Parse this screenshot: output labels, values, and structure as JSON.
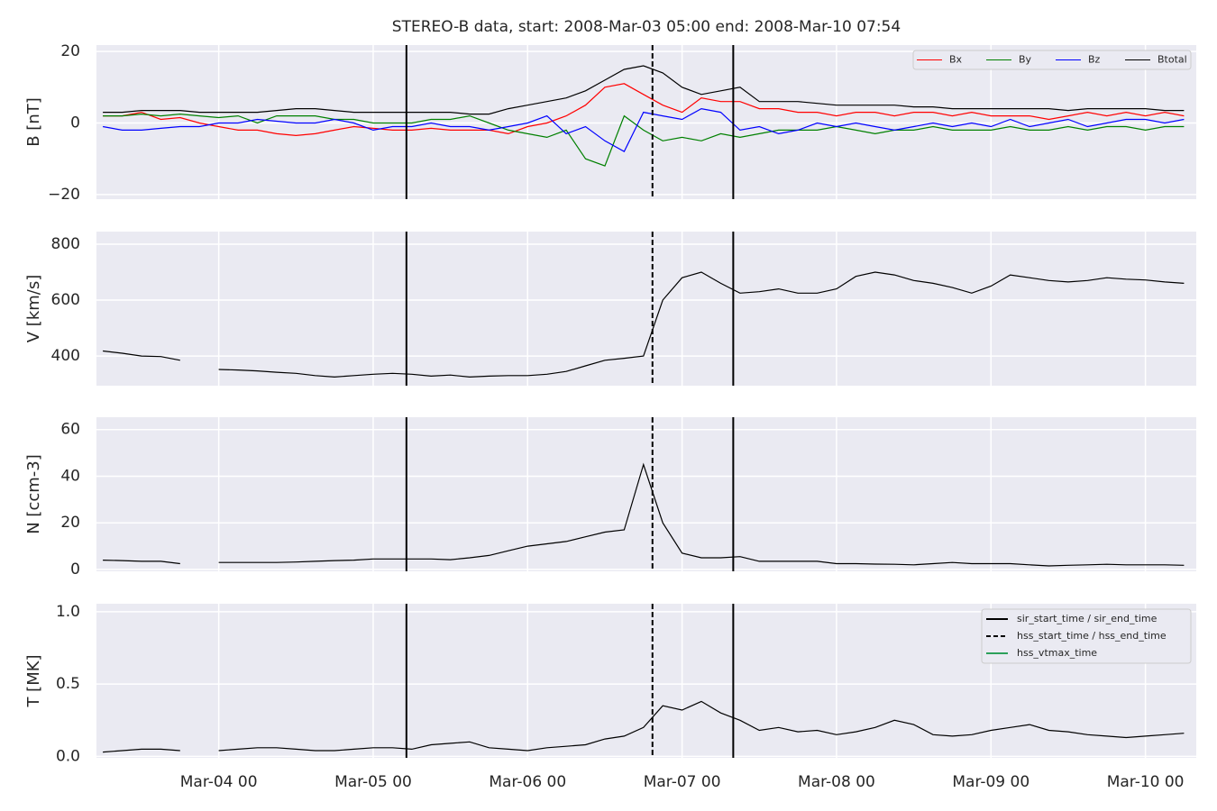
{
  "chart_data": [
    {
      "type": "line",
      "title": "STEREO-B data, start: 2008-Mar-03 05:00  end: 2008-Mar-10 07:54",
      "ylabel": "B [nT]",
      "ylim": [
        -21.3,
        21.8
      ],
      "yticks": [
        {
          "value": -20,
          "label": "−20"
        },
        0,
        20
      ],
      "grid": true,
      "legend": "upper right",
      "series": [
        {
          "name": "Bx",
          "color": "#ff0000",
          "values": [
            2,
            2,
            3,
            1,
            1.5,
            0,
            -1,
            -2,
            -2,
            -3,
            -3.5,
            -3,
            -2,
            -1,
            -1.5,
            -2,
            -2,
            -1.5,
            -2,
            -2,
            -2,
            -3,
            -1,
            0,
            2,
            5,
            10,
            11,
            8,
            5,
            3,
            7,
            6,
            6,
            4,
            4,
            3,
            3,
            2,
            3,
            3,
            2,
            3,
            3,
            2,
            3,
            2,
            2,
            2,
            1,
            2,
            3,
            2,
            3,
            2,
            3,
            2
          ]
        },
        {
          "name": "By",
          "color": "#008000",
          "values": [
            2,
            2,
            2.5,
            2,
            2.5,
            2,
            1.5,
            2,
            0,
            2,
            2,
            2,
            1,
            1,
            0,
            0,
            0,
            1,
            1,
            2,
            0,
            -2,
            -3,
            -4,
            -2,
            -10,
            -12,
            2,
            -2,
            -5,
            -4,
            -5,
            -3,
            -4,
            -3,
            -2,
            -2,
            -2,
            -1,
            -2,
            -3,
            -2,
            -2,
            -1,
            -2,
            -2,
            -2,
            -1,
            -2,
            -2,
            -1,
            -2,
            -1,
            -1,
            -2,
            -1,
            -1
          ]
        },
        {
          "name": "Bz",
          "color": "#0000ff",
          "values": [
            -1,
            -2,
            -2,
            -1.5,
            -1,
            -1,
            0,
            0,
            1,
            0.5,
            0,
            0,
            1,
            0,
            -2,
            -1,
            -1,
            0,
            -1,
            -1,
            -2,
            -1,
            0,
            2,
            -3,
            -1,
            -5,
            -8,
            3,
            2,
            1,
            4,
            3,
            -2,
            -1,
            -3,
            -2,
            0,
            -1,
            0,
            -1,
            -2,
            -1,
            0,
            -1,
            0,
            -1,
            1,
            -1,
            0,
            1,
            -1,
            0,
            1,
            1,
            0,
            1
          ]
        },
        {
          "name": "Btotal",
          "color": "#000000",
          "values": [
            3,
            3,
            3.5,
            3.5,
            3.5,
            3,
            3,
            3,
            3,
            3.5,
            4,
            4,
            3.5,
            3,
            3,
            3,
            3,
            3,
            3,
            2.5,
            2.5,
            4,
            5,
            6,
            7,
            9,
            12,
            15,
            16,
            14,
            10,
            8,
            9,
            10,
            6,
            6,
            6,
            5.5,
            5,
            5,
            5,
            5,
            4.5,
            4.5,
            4,
            4,
            4,
            4,
            4,
            4,
            3.5,
            4,
            4,
            4,
            4,
            3.5,
            3.5
          ]
        }
      ]
    },
    {
      "type": "line",
      "ylabel": "V [km/s]",
      "ylim": [
        294,
        845
      ],
      "yticks": [
        400,
        600,
        800
      ],
      "grid": true,
      "series": [
        {
          "name": "V",
          "color": "#000000",
          "values": [
            418,
            410,
            400,
            398,
            385,
            null,
            352,
            350,
            347,
            342,
            338,
            330,
            325,
            330,
            335,
            338,
            335,
            328,
            332,
            325,
            328,
            330,
            330,
            335,
            345,
            365,
            385,
            392,
            400,
            600,
            680,
            700,
            660,
            625,
            630,
            640,
            625,
            625,
            640,
            685,
            700,
            690,
            670,
            660,
            645,
            625,
            650,
            690,
            680,
            670,
            665,
            670,
            680,
            675,
            672,
            665,
            660
          ]
        }
      ]
    },
    {
      "type": "line",
      "ylabel": "N [ccm-3]",
      "ylim": [
        -0.8,
        65.3
      ],
      "yticks": [
        0,
        20,
        40,
        60
      ],
      "grid": true,
      "series": [
        {
          "name": "N",
          "color": "#000000",
          "values": [
            4,
            3.8,
            3.5,
            3.5,
            2.5,
            null,
            3,
            3,
            3,
            3,
            3.2,
            3.5,
            3.8,
            4,
            4.5,
            4.5,
            4.5,
            4.5,
            4.2,
            5,
            6,
            8,
            10,
            11,
            12,
            14,
            16,
            17,
            45,
            20,
            7,
            5,
            5,
            5.5,
            3.5,
            3.5,
            3.5,
            3.5,
            2.5,
            2.5,
            2.3,
            2.2,
            2,
            2.5,
            3,
            2.5,
            2.5,
            2.5,
            2,
            1.5,
            1.8,
            2,
            2.2,
            2,
            2,
            2,
            1.8
          ]
        }
      ]
    },
    {
      "type": "line",
      "ylabel": "T [MK]",
      "ylim": [
        -0.01,
        1.055
      ],
      "yticks": [
        {
          "value": 0,
          "label": "0.0"
        },
        {
          "value": 0.5,
          "label": "0.5"
        },
        {
          "value": 1,
          "label": "1.0"
        }
      ],
      "grid": true,
      "legend": "upper right",
      "series": [
        {
          "name": "T",
          "color": "#000000",
          "values": [
            0.03,
            0.04,
            0.05,
            0.05,
            0.04,
            null,
            0.04,
            0.05,
            0.06,
            0.06,
            0.05,
            0.04,
            0.04,
            0.05,
            0.06,
            0.06,
            0.05,
            0.08,
            0.09,
            0.1,
            0.06,
            0.05,
            0.04,
            0.06,
            0.07,
            0.08,
            0.12,
            0.14,
            0.2,
            0.35,
            0.32,
            0.38,
            0.3,
            0.25,
            0.18,
            0.2,
            0.17,
            0.18,
            0.15,
            0.17,
            0.2,
            0.25,
            0.22,
            0.15,
            0.14,
            0.15,
            0.18,
            0.2,
            0.22,
            0.18,
            0.17,
            0.15,
            0.14,
            0.13,
            0.14,
            0.15,
            0.16
          ]
        }
      ],
      "x": [
        "Mar-03 06",
        "Mar-03 09",
        "Mar-03 12",
        "Mar-03 15",
        "Mar-03 18",
        "Mar-03 21",
        "Mar-04 00",
        "Mar-04 03",
        "Mar-04 06",
        "Mar-04 09",
        "Mar-04 12",
        "Mar-04 15",
        "Mar-04 18",
        "Mar-04 21",
        "Mar-05 00",
        "Mar-05 03",
        "Mar-05 06",
        "Mar-05 09",
        "Mar-05 12",
        "Mar-05 15",
        "Mar-05 18",
        "Mar-05 21",
        "Mar-06 00",
        "Mar-06 03",
        "Mar-06 06",
        "Mar-06 09",
        "Mar-06 12",
        "Mar-06 15",
        "Mar-06 18",
        "Mar-06 21",
        "Mar-07 00",
        "Mar-07 03",
        "Mar-07 06",
        "Mar-07 09",
        "Mar-07 12",
        "Mar-07 15",
        "Mar-07 18",
        "Mar-07 21",
        "Mar-08 00",
        "Mar-08 03",
        "Mar-08 06",
        "Mar-08 09",
        "Mar-08 12",
        "Mar-08 15",
        "Mar-08 18",
        "Mar-08 21",
        "Mar-09 00",
        "Mar-09 03",
        "Mar-09 06",
        "Mar-09 09",
        "Mar-09 12",
        "Mar-09 15",
        "Mar-09 18",
        "Mar-09 21",
        "Mar-10 00",
        "Mar-10 03",
        "Mar-10 06"
      ],
      "xlim": [
        "Mar-03 05:00",
        "Mar-10 07:54"
      ],
      "xticks": [
        "Mar-04 00",
        "Mar-05 00",
        "Mar-06 00",
        "Mar-07 00",
        "Mar-08 00",
        "Mar-09 00",
        "Mar-10 00"
      ],
      "event_lines": [
        {
          "name": "sir_start_time / sir_end_time",
          "color": "#000000",
          "style": "solid",
          "times": [
            "Mar-05 05:10",
            "Mar-07 07:57"
          ]
        },
        {
          "name": "hss_start_time / hss_end_time",
          "color": "#000000",
          "style": "dashed",
          "times": [
            "Mar-06 19:24"
          ]
        },
        {
          "name": "hss_vtmax_time",
          "color": "#2ca05a",
          "style": "solid",
          "times": []
        }
      ]
    }
  ]
}
